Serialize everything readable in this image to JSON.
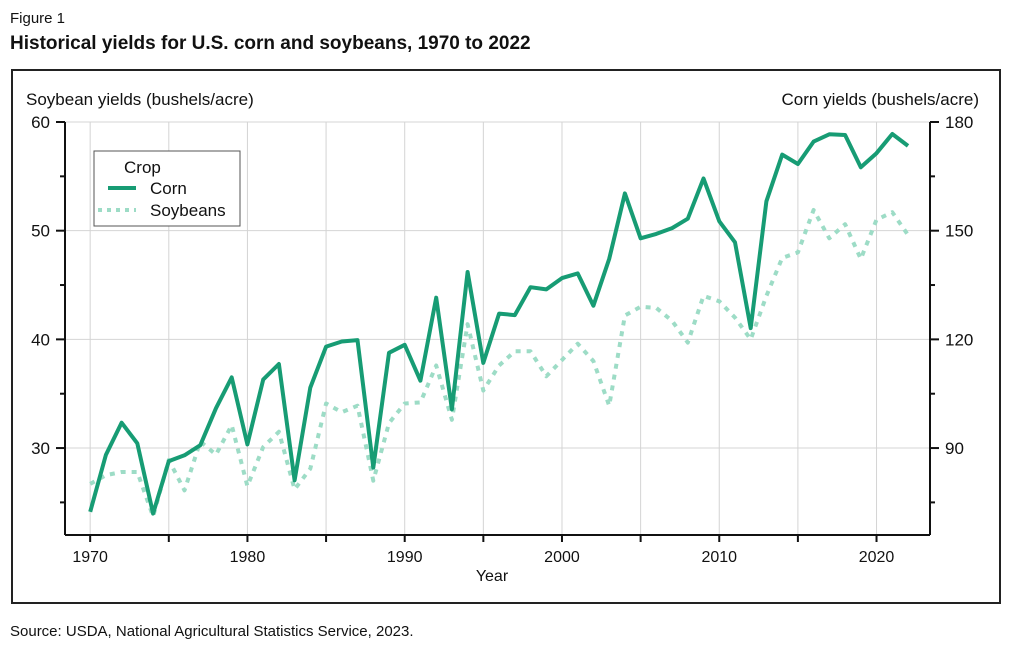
{
  "figure_label": "Figure 1",
  "title": "Historical yields for U.S. corn and soybeans, 1970 to 2022",
  "source": "Source: USDA, National Agricultural Statistics Service, 2023.",
  "chart_data": {
    "type": "line",
    "xlabel": "Year",
    "ylabel_left": "Soybean yields (bushels/acre)",
    "ylabel_right": "Corn yields (bushels/acre)",
    "xlim": [
      1968.4,
      2023.4
    ],
    "ylim_left": [
      22,
      60
    ],
    "ylim_right": [
      66,
      180
    ],
    "x_ticks": [
      1970,
      1980,
      1990,
      2000,
      2010,
      2020
    ],
    "y_ticks_left": [
      30,
      40,
      50,
      60
    ],
    "y_ticks_right": [
      90,
      120,
      150,
      180
    ],
    "grid": true,
    "legend": {
      "title": "Crop",
      "placement": "top-left"
    },
    "colors": {
      "corn": "#179c74",
      "soybeans": "#9ddcc6"
    },
    "x": [
      1970,
      1971,
      1972,
      1973,
      1974,
      1975,
      1976,
      1977,
      1978,
      1979,
      1980,
      1981,
      1982,
      1983,
      1984,
      1985,
      1986,
      1987,
      1988,
      1989,
      1990,
      1991,
      1992,
      1993,
      1994,
      1995,
      1996,
      1997,
      1998,
      1999,
      2000,
      2001,
      2002,
      2003,
      2004,
      2005,
      2006,
      2007,
      2008,
      2009,
      2010,
      2011,
      2012,
      2013,
      2014,
      2015,
      2016,
      2017,
      2018,
      2019,
      2020,
      2021,
      2022
    ],
    "series": [
      {
        "name": "Corn",
        "axis": "right",
        "style": "solid",
        "values": [
          72.4,
          88.1,
          97.0,
          91.3,
          71.9,
          86.4,
          88.0,
          90.8,
          101.0,
          109.5,
          91.0,
          108.9,
          113.2,
          81.1,
          106.7,
          118.0,
          119.4,
          119.8,
          84.6,
          116.3,
          118.5,
          108.6,
          131.5,
          100.7,
          138.6,
          113.5,
          127.1,
          126.7,
          134.4,
          133.8,
          136.9,
          138.2,
          129.3,
          142.2,
          160.3,
          147.9,
          149.1,
          150.7,
          153.3,
          164.4,
          152.6,
          146.8,
          123.1,
          158.1,
          171.0,
          168.4,
          174.6,
          176.6,
          176.4,
          167.5,
          171.4,
          176.7,
          173.4
        ]
      },
      {
        "name": "Soybeans",
        "axis": "left",
        "style": "dotted",
        "values": [
          26.7,
          27.5,
          27.8,
          27.8,
          23.7,
          28.9,
          26.1,
          30.6,
          29.4,
          32.1,
          26.5,
          30.1,
          31.5,
          26.2,
          28.1,
          34.1,
          33.3,
          33.9,
          27.0,
          32.3,
          34.1,
          34.2,
          37.6,
          32.6,
          41.4,
          35.3,
          37.6,
          38.9,
          38.9,
          36.6,
          38.1,
          39.6,
          38.0,
          33.9,
          42.2,
          43.0,
          42.9,
          41.7,
          39.7,
          44.0,
          43.5,
          42.0,
          40.0,
          44.0,
          47.5,
          48.0,
          51.9,
          49.3,
          50.6,
          47.4,
          51.0,
          51.7,
          49.6
        ]
      }
    ]
  }
}
